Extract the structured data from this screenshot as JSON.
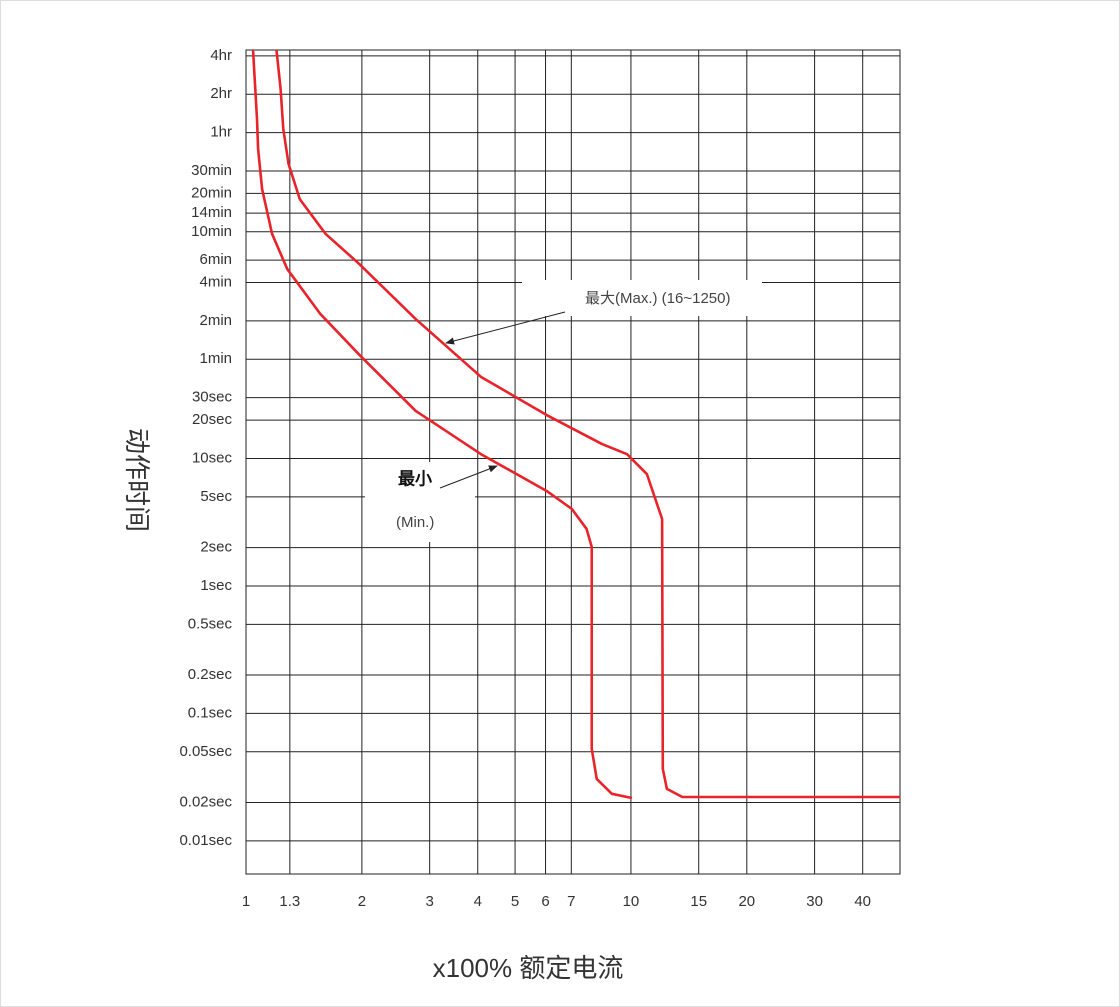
{
  "chart_data": {
    "type": "line",
    "x_label": "x100% 额定电流",
    "y_label": "动作时间",
    "xscale": "log",
    "yscale": "log",
    "grid": true,
    "xlim": [
      1,
      50
    ],
    "ylim": [
      0.0055,
      16000
    ],
    "xticks": [
      1,
      1.3,
      2,
      3,
      4,
      5,
      6,
      7,
      10,
      15,
      20,
      30,
      40
    ],
    "yticks": [
      {
        "value": 14400,
        "label": "4hr"
      },
      {
        "value": 7200,
        "label": "2hr"
      },
      {
        "value": 3600,
        "label": "1hr"
      },
      {
        "value": 1800,
        "label": "30min"
      },
      {
        "value": 1200,
        "label": "20min"
      },
      {
        "value": 840,
        "label": "14min"
      },
      {
        "value": 600,
        "label": "10min"
      },
      {
        "value": 360,
        "label": "6min"
      },
      {
        "value": 240,
        "label": "4min"
      },
      {
        "value": 120,
        "label": "2min"
      },
      {
        "value": 60,
        "label": "1min"
      },
      {
        "value": 30,
        "label": "30sec"
      },
      {
        "value": 20,
        "label": "20sec"
      },
      {
        "value": 10,
        "label": "10sec"
      },
      {
        "value": 5,
        "label": "5sec"
      },
      {
        "value": 2,
        "label": "2sec"
      },
      {
        "value": 1,
        "label": "1sec"
      },
      {
        "value": 0.5,
        "label": "0.5sec"
      },
      {
        "value": 0.2,
        "label": "0.2sec"
      },
      {
        "value": 0.1,
        "label": "0.1sec"
      },
      {
        "value": 0.05,
        "label": "0.05sec"
      },
      {
        "value": 0.02,
        "label": "0.02sec"
      },
      {
        "value": 0.01,
        "label": "0.01sec"
      }
    ],
    "annotations": [
      "最大(Max.)  (16~1250)",
      "最小",
      "(Min.)"
    ],
    "series": [
      {
        "color": "#e8232a",
        "x": [
          1.043,
          1.068,
          1.075,
          1.101,
          1.169,
          1.28,
          1.56,
          1.97,
          2.76,
          4.08,
          6.04,
          7.02,
          7.67,
          7.91,
          7.91,
          8.15,
          8.92,
          10.06
        ],
        "values": [
          16000,
          4600,
          2680,
          1300,
          577,
          306,
          136,
          65,
          23.6,
          10.8,
          5.56,
          4.02,
          2.8,
          2.02,
          0.0528,
          0.0306,
          0.0234,
          0.0217
        ]
      },
      {
        "color": "#e8232a",
        "x": [
          1.2,
          1.23,
          1.25,
          1.29,
          1.38,
          1.61,
          1.97,
          2.76,
          4.08,
          6.04,
          8.4,
          9.77,
          11.0,
          12.05,
          12.1,
          12.4,
          13.6,
          50
        ],
        "values": [
          16000,
          7900,
          3840,
          2040,
          1080,
          577,
          335,
          124,
          43.6,
          21.9,
          13.0,
          10.8,
          7.55,
          3.35,
          0.0367,
          0.0256,
          0.0221,
          0.0221
        ]
      }
    ]
  }
}
